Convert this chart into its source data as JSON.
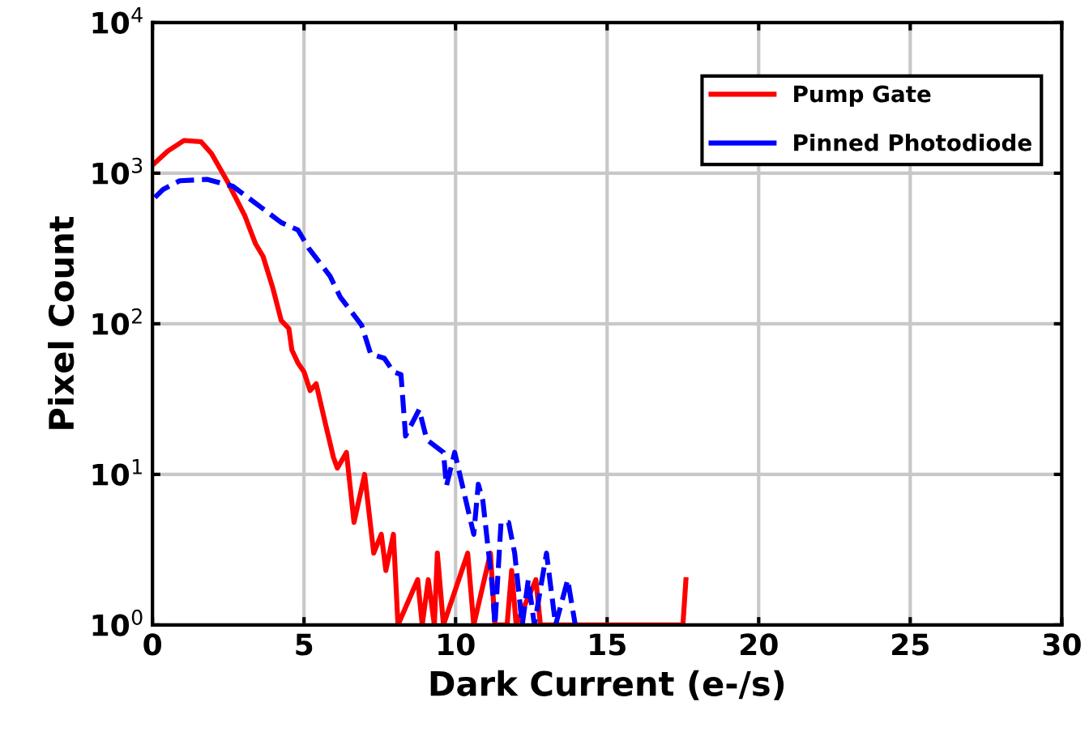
{
  "chart_data": {
    "type": "line",
    "xlabel": "Dark Current (e-/s)",
    "ylabel": "Pixel Count",
    "log": "y",
    "grid": true,
    "legend": "top right",
    "xlim": [
      0,
      30
    ],
    "xticks": [
      0,
      5,
      10,
      15,
      20,
      25,
      30
    ],
    "ylim": [
      1,
      10000
    ],
    "yticks": [
      {
        "value": 1,
        "label": "10$^{0}$"
      },
      {
        "value": 10,
        "label": "10$^{1}$"
      },
      {
        "value": 100,
        "label": "10$^{2}$"
      },
      {
        "value": 1000,
        "label": "10$^{3}$"
      },
      {
        "value": 10000,
        "label": "10$^{4}$"
      }
    ],
    "series": [
      {
        "name": "Pump Gate",
        "color": "#ff0000",
        "line_style": "solid",
        "x": [
          0,
          0.5,
          1.04,
          1.6,
          1.95,
          2.5,
          3.05,
          3.4,
          3.65,
          3.97,
          4.25,
          4.5,
          4.6,
          4.8,
          5.0,
          5.2,
          5.4,
          5.7,
          5.97,
          6.1,
          6.4,
          6.65,
          7.0,
          7.3,
          7.55,
          7.7,
          7.95,
          8.1,
          8.75,
          8.9,
          9.1,
          9.3,
          9.4,
          9.6,
          10.4,
          10.6,
          11.15,
          11.3,
          11.7,
          11.85,
          12.0,
          12.65,
          12.8,
          17.5,
          17.6
        ],
        "values": [
          1130,
          1400,
          1650,
          1620,
          1350,
          860,
          520,
          340,
          280,
          173,
          105,
          93,
          67,
          55,
          48,
          36,
          40,
          22,
          13,
          11,
          14,
          4.8,
          10,
          3,
          4,
          2.3,
          4,
          1,
          2,
          1,
          2,
          1,
          3,
          1,
          3,
          1,
          3,
          1,
          1,
          2.3,
          1,
          2,
          1,
          1,
          2
        ]
      },
      {
        "name": "Pinned Photodiode",
        "color": "#0000ff",
        "line_style": "dashed",
        "x": [
          0.08,
          0.35,
          0.9,
          1.8,
          2.65,
          3.55,
          4.25,
          4.8,
          5.16,
          5.86,
          6.2,
          6.9,
          7.2,
          7.65,
          7.95,
          8.2,
          8.35,
          8.8,
          9.05,
          9.6,
          9.7,
          9.97,
          10.6,
          10.75,
          10.9,
          11.2,
          11.3,
          11.5,
          11.75,
          11.95,
          12.2,
          12.4,
          12.6,
          13.0,
          13.3,
          13.7,
          13.95
        ],
        "values": [
          690,
          780,
          890,
          910,
          820,
          600,
          470,
          420,
          316,
          207,
          150,
          98,
          63,
          59,
          48,
          46,
          18,
          27,
          17,
          14,
          8.4,
          14,
          4,
          8.6,
          6.7,
          1.9,
          1,
          4.8,
          4.8,
          3,
          1,
          2,
          1,
          3,
          1,
          2,
          1
        ]
      }
    ]
  }
}
